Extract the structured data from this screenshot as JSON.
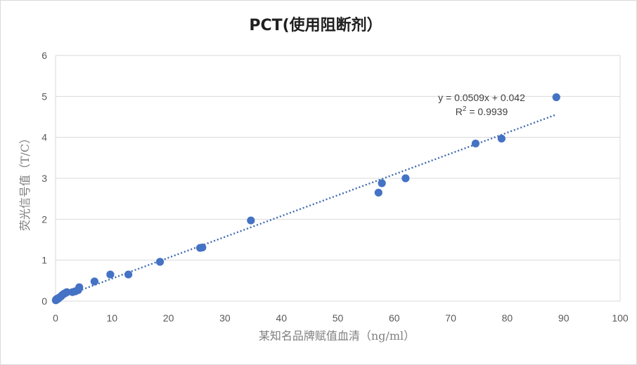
{
  "chart_data": {
    "type": "scatter",
    "title": "PCT(使用阻断剂）",
    "xlabel": "某知名品牌赋值血清（ng/ml）",
    "ylabel": "荧光信号值（T/C）",
    "xlim": [
      0,
      100
    ],
    "ylim": [
      0,
      6
    ],
    "x_ticks": [
      "0",
      "10",
      "20",
      "30",
      "40",
      "50",
      "60",
      "70",
      "80",
      "90",
      "100"
    ],
    "y_ticks": [
      "0",
      "1",
      "2",
      "3",
      "4",
      "5",
      "6"
    ],
    "grid": "horizontal",
    "legend": "none",
    "point_color": "#4472c4",
    "trendline": {
      "type": "linear",
      "slope": 0.0509,
      "intercept": 0.042,
      "x_range": [
        0,
        88.7
      ],
      "color": "#3e6ab0",
      "equation_line1": "y = 0.0509x + 0.042",
      "r2_prefix": "R",
      "r2_sup": "2",
      "r2_suffix": " = 0.9939"
    },
    "series": [
      {
        "points": [
          [
            0.05,
            0.02
          ],
          [
            0.1,
            0.04
          ],
          [
            0.2,
            0.05
          ],
          [
            0.3,
            0.06
          ],
          [
            0.4,
            0.05
          ],
          [
            0.5,
            0.07
          ],
          [
            0.6,
            0.08
          ],
          [
            0.8,
            0.1
          ],
          [
            1.0,
            0.12
          ],
          [
            1.2,
            0.15
          ],
          [
            1.5,
            0.18
          ],
          [
            1.8,
            0.2
          ],
          [
            2.0,
            0.22
          ],
          [
            3.0,
            0.22
          ],
          [
            3.5,
            0.24
          ],
          [
            4.0,
            0.27
          ],
          [
            4.2,
            0.34
          ],
          [
            6.9,
            0.48
          ],
          [
            9.7,
            0.65
          ],
          [
            12.9,
            0.65
          ],
          [
            18.5,
            0.96
          ],
          [
            25.6,
            1.3
          ],
          [
            26.0,
            1.31
          ],
          [
            34.6,
            1.97
          ],
          [
            57.2,
            2.65
          ],
          [
            57.8,
            2.88
          ],
          [
            62.0,
            3.0
          ],
          [
            74.4,
            3.85
          ],
          [
            79.0,
            3.97
          ],
          [
            88.7,
            4.98
          ]
        ]
      }
    ]
  }
}
